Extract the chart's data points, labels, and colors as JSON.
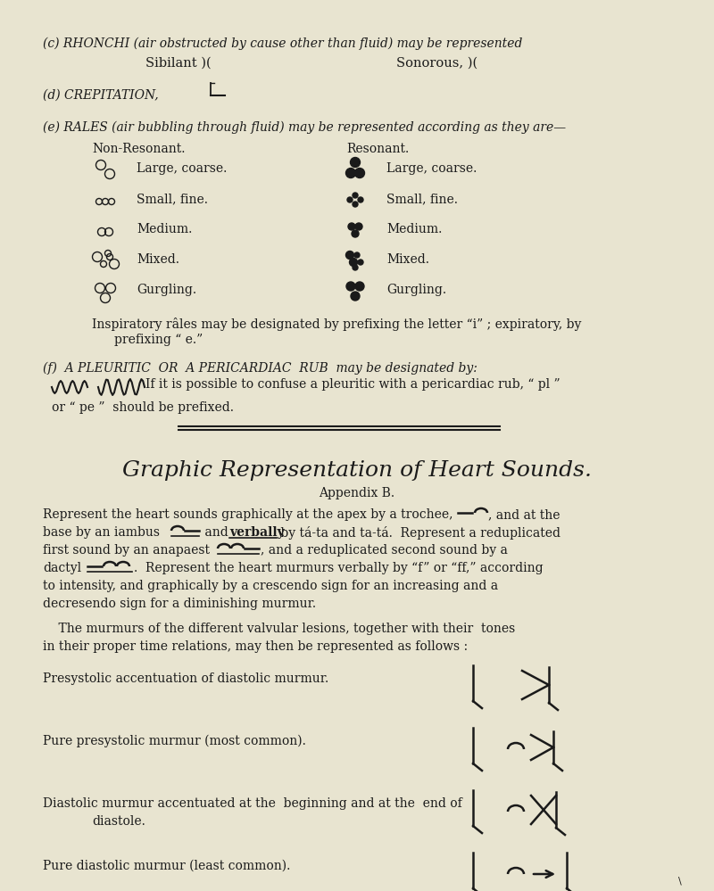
{
  "bg_color": "#e8e4d0",
  "text_color": "#1a1a1a",
  "page_width": 8.0,
  "page_height": 9.99,
  "section_c_title": "(c) RHONCHI (air obstructed by cause other than fluid) may be represented",
  "section_c_sibilant": "Sibilant )(",
  "section_c_sonorous": "Sonorous, )(",
  "section_d_prefix": "(d) CREPITATION,",
  "section_e_title": "(e) RALES (air bubbling through fluid) may be represented according as they are—",
  "nonresonant_label": "Non-Resonant.",
  "resonant_label": "Resonant.",
  "rales_labels": [
    "Large, coarse.",
    "Small, fine.",
    "Medium.",
    "Mixed.",
    "Gurgling."
  ],
  "inspiratory_line1": "Inspiratory râles may be designated by prefixing the letter “i” ; expiratory, by",
  "inspiratory_line2": "prefixing “ e.”",
  "section_f_title": "(f)  A PLEURITIC  OR  A PERICARDIAC  RUB  may be designated by:",
  "section_f_line2": "If it is possible to confuse a pleuritic with a pericardiac rub, “ pl ”",
  "section_f_line3": "or “ pe ”  should be prefixed.",
  "heart_title": "Graphic Representation of Heart Sounds.",
  "appendix_label": "Appendix B.",
  "p1_l1": "Represent the heart sounds graphically at the apex by a trochee,",
  "p1_l1b": ", and at the",
  "p1_l2": "base by an iambus",
  "p1_l2b": " and ",
  "p1_l2c": "verbally",
  "p1_l2d": " by tá-ta and ta-tá.  Represent a reduplicated",
  "p1_l3": "first sound by an anapaest",
  "p1_l3b": ", and a reduplicated second sound by a",
  "p1_l4": "dactyl",
  "p1_l4b": ".  Represent the heart murmurs verbally by “f” or “ff,” according",
  "p1_l5": "to intensity, and graphically by a crescendo sign for an increasing and a",
  "p1_l6": "decresendo sign for a diminishing murmur.",
  "p2_l1": "    The murmurs of the different valvular lesions, together with their  tones",
  "p2_l2": "in their proper time relations, may then be represented as follows :",
  "heart_rows": [
    {
      "label": "Presystolic accentuation of diastolic murmur.",
      "label2": null
    },
    {
      "label": "Pure presystolic murmur (most common).",
      "label2": null
    },
    {
      "label": "Diastolic murmur accentuated at the  beginning and at the  end of",
      "label2": "diastole."
    },
    {
      "label": "Pure diastolic murmur (least common).",
      "label2": null
    }
  ]
}
